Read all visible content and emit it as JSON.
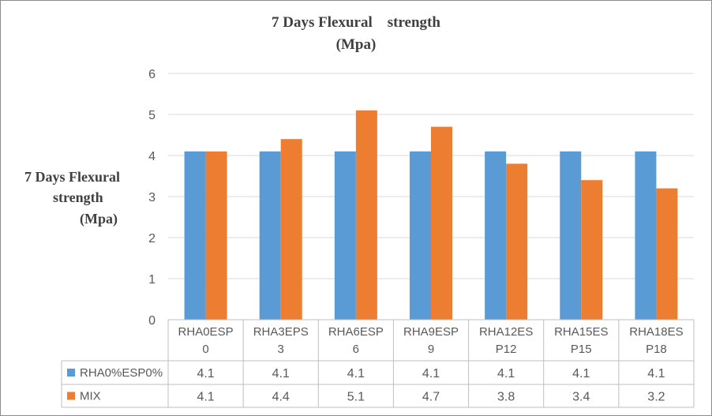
{
  "chart_data": {
    "type": "bar",
    "title_lines": [
      "7 Days Flexural    strength",
      "(Mpa)"
    ],
    "ylabel_lines": [
      "7 Days Flexural",
      "strength",
      "(Mpa)"
    ],
    "xlabel": "",
    "categories": [
      [
        "RHA0ESP",
        "0"
      ],
      [
        "RHA3EPS",
        "3"
      ],
      [
        "RHA6ESP",
        "6"
      ],
      [
        "RHA9ESP",
        "9"
      ],
      [
        "RHA12ES",
        "P12"
      ],
      [
        "RHA15ES",
        "P15"
      ],
      [
        "RHA18ES",
        "P18"
      ]
    ],
    "series": [
      {
        "name": "RHA0%ESP0%",
        "color": "#5b9bd5",
        "values": [
          4.1,
          4.1,
          4.1,
          4.1,
          4.1,
          4.1,
          4.1
        ],
        "labels": [
          "4.1",
          "4.1",
          "4.1",
          "4.1",
          "4.1",
          "4.1",
          "4.1"
        ]
      },
      {
        "name": "MIX",
        "color": "#ed7d31",
        "values": [
          4.1,
          4.4,
          5.1,
          4.7,
          3.8,
          3.4,
          3.2
        ],
        "labels": [
          "4.1",
          "4.4",
          "5.1",
          "4.7",
          "3.8",
          "3.4",
          "3.2"
        ]
      }
    ],
    "ylim": [
      0,
      6
    ],
    "yticks": [
      "0",
      "1",
      "2",
      "3",
      "4",
      "5",
      "6"
    ],
    "grid": true,
    "legend": "data-table"
  }
}
